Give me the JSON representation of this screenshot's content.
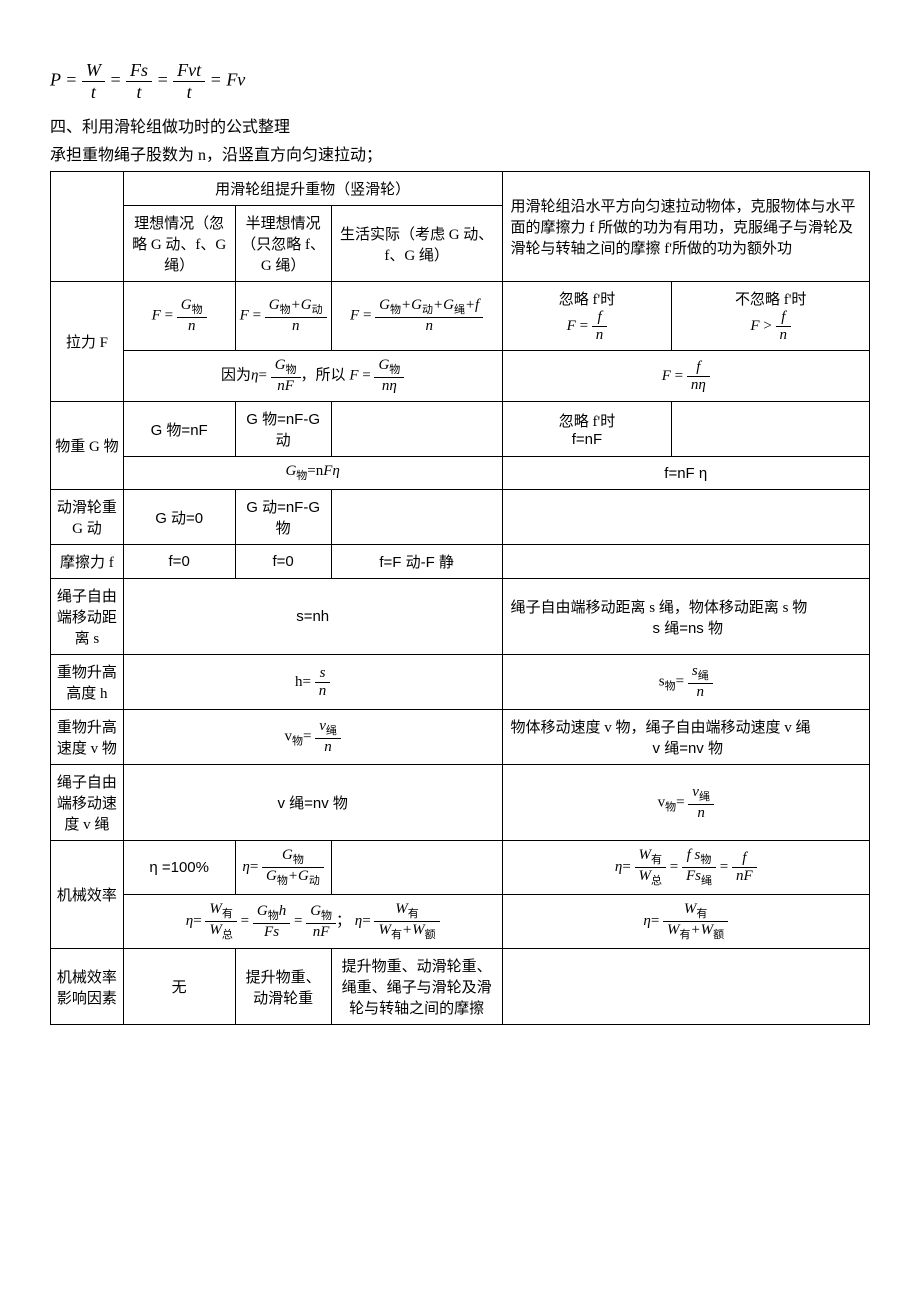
{
  "top_formula_html": "<span class='it'>P</span> = <span class='frac'><span class='num'><span class='it'>W</span></span><span class='den'>t</span></span> = <span class='frac'><span class='num'><span class='it'>F</span>s</span><span class='den'>t</span></span> = <span class='frac'><span class='num'><span class='it'>Fv</span>t</span><span class='den'>t</span></span> = <span class='it'>Fv</span>",
  "heading1": "四、利用滑轮组做功时的公式整理",
  "heading2": "承担重物绳子股数为 n，沿竖直方向匀速拉动；",
  "headers": {
    "vertical": "用滑轮组提升重物（竖滑轮）",
    "ideal": "理想情况（忽略 G 动、f、G 绳）",
    "semi": "半理想情况（只忽略 f、G 绳）",
    "real": "生活实际（考虑 G 动、f、G 绳）",
    "horizontal": "用滑轮组沿水平方向匀速拉动物体，克服物体与水平面的摩擦力 f 所做的功为有用功，克服绳子与滑轮及滑轮与转轴之间的摩擦 f'所做的功为额外功",
    "ignore_fp": "忽略 f'时",
    "not_ignore_fp": "不忽略 f'时"
  },
  "rows": {
    "F": {
      "label": "拉力 F",
      "ideal_html": "<span class='it'>F</span> = <span class='frac'><span class='num'><span class='it'>G</span><sub>物</sub></span><span class='den'>n</span></span>",
      "semi_html": "<span class='it'>F</span> = <span class='frac'><span class='num'><span class='it'>G</span><sub>物</sub>+<span class='it'>G</span><sub>动</sub></span><span class='den'>n</span></span>",
      "real_html": "<span class='it'>F</span> = <span class='frac'><span class='num'><span class='it'>G</span><sub>物</sub>+<span class='it'>G</span><sub>动</sub>+<span class='it'>G</span><sub>绳</sub>+f</span><span class='den'>n</span></span>",
      "h_ignore_html": "<span class='it'>F</span> = <span class='frac'><span class='num'>f</span><span class='den'>n</span></span>",
      "h_not_ignore_html": "<span class='it'>F</span> &gt; <span class='frac'><span class='num'>f</span><span class='den'>n</span></span>",
      "combined_v_html": "因为<span class='it'>η</span>= <span class='frac'><span class='num'><span class='it'>G</span><sub>物</sub></span><span class='den'>n<span class='it'>F</span></span></span>，所以 <span class='it'>F</span> = <span class='frac'><span class='num'><span class='it'>G</span><sub>物</sub></span><span class='den'>n<span class='it'>η</span></span></span>",
      "combined_h_html": "<span class='it'>F</span> = <span class='frac'><span class='num'>f</span><span class='den'>n<span class='it'>η</span></span></span>"
    },
    "Gw": {
      "label": "物重 G 物",
      "ideal": "G 物=nF",
      "semi": "G 物=nF-G 动",
      "h_ignore": "f=nF",
      "combined_v_html": "<span class='it'>G</span><sub>物</sub>=n<span class='it'>Fη</span>",
      "combined_h": "f=nF η"
    },
    "Gd": {
      "label": "动滑轮重 G 动",
      "ideal": "G 动=0",
      "semi": "G 动=nF-G 物"
    },
    "f": {
      "label": "摩擦力 f",
      "ideal": "f=0",
      "semi": "f=0",
      "real": "f=F 动-F 静"
    },
    "s": {
      "label": "绳子自由端移动距离 s",
      "v": "s=nh",
      "h1": "绳子自由端移动距离 s 绳，物体移动距离 s 物",
      "h2": "s 绳=ns 物"
    },
    "h": {
      "label": "重物升高高度 h",
      "v_html": "h= <span class='frac'><span class='num'>s</span><span class='den'>n</span></span>",
      "h_html": "s<sub>物</sub>= <span class='frac'><span class='num'>s<sub>绳</sub></span><span class='den'>n</span></span>"
    },
    "vw": {
      "label": "重物升高速度 v 物",
      "v_html": "v<sub>物</sub>= <span class='frac'><span class='num'>v<sub>绳</sub></span><span class='den'>n</span></span>",
      "h1": "物体移动速度 v 物，绳子自由端移动速度 v 绳",
      "h2": "v 绳=nv 物"
    },
    "vr": {
      "label": "绳子自由端移动速度 v 绳",
      "v": "v 绳=nv 物",
      "h_html": "v<sub>物</sub>= <span class='frac'><span class='num'>v<sub>绳</sub></span><span class='den'>n</span></span>"
    },
    "eta": {
      "label": "机械效率",
      "ideal": "η =100%",
      "semi_html": "<span class='it'>η</span>= <span class='frac'><span class='num'><span class='it'>G</span><sub>物</sub></span><span class='den'><span class='it'>G</span><sub>物</sub>+<span class='it'>G</span><sub>动</sub></span></span>",
      "h_html": "<span class='it'>η</span>= <span class='frac'><span class='num'><span class='it'>W</span><sub>有</sub></span><span class='den'><span class='it'>W</span><sub>总</sub></span></span> = <span class='frac'><span class='num'>f s<sub>物</sub></span><span class='den'><span class='it'>F</span>s<sub>绳</sub></span></span> = <span class='frac'><span class='num'>f</span><span class='den'>n<span class='it'>F</span></span></span>",
      "combined_v_html": "<span class='it'>η</span>= <span class='frac'><span class='num'><span class='it'>W</span><sub>有</sub></span><span class='den'><span class='it'>W</span><sub>总</sub></span></span> = <span class='frac'><span class='num'><span class='it'>G</span><sub>物</sub>h</span><span class='den'><span class='it'>F</span>s</span></span> = <span class='frac'><span class='num'><span class='it'>G</span><sub>物</sub></span><span class='den'>n<span class='it'>F</span></span></span>；&nbsp;<span class='it'>η</span>= <span class='frac'><span class='num'><span class='it'>W</span><sub>有</sub></span><span class='den'><span class='it'>W</span><sub>有</sub>+<span class='it'>W</span><sub>额</sub></span></span>",
      "combined_h_html": "<span class='it'>η</span>= <span class='frac'><span class='num'><span class='it'>W</span><sub>有</sub></span><span class='den'><span class='it'>W</span><sub>有</sub>+<span class='it'>W</span><sub>额</sub></span></span>"
    },
    "factors": {
      "label": "机械效率影响因素",
      "ideal": "无",
      "semi": "提升物重、动滑轮重",
      "real": "提升物重、动滑轮重、绳重、绳子与滑轮及滑轮与转轴之间的摩擦"
    }
  }
}
